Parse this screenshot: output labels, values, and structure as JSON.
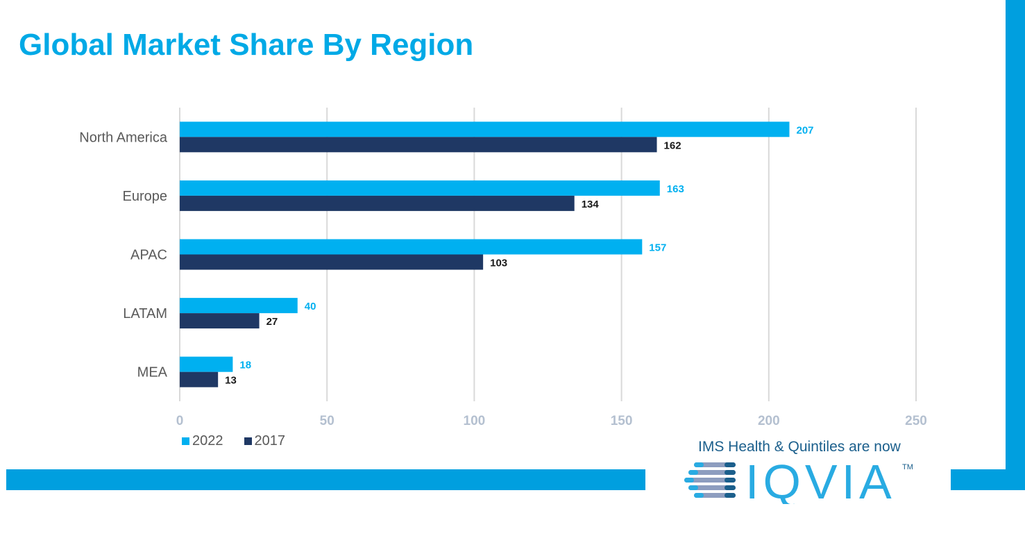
{
  "chart_data": {
    "type": "bar",
    "orientation": "horizontal",
    "title": "Global Market Share By Region",
    "categories": [
      "North America",
      "Europe",
      "APAC",
      "LATAM",
      "MEA"
    ],
    "series": [
      {
        "name": "2022",
        "values": [
          207,
          163,
          157,
          40,
          18
        ],
        "color": "#00b0f0"
      },
      {
        "name": "2017",
        "values": [
          162,
          134,
          103,
          27,
          13
        ],
        "color": "#1f3864"
      }
    ],
    "xlim": [
      0,
      250
    ],
    "xticks": [
      0,
      50,
      100,
      150,
      200,
      250
    ],
    "grid": true,
    "legend": "bottom-left",
    "data_labels": true
  },
  "branding": {
    "tagline": "IMS Health & Quintiles are now",
    "logo_text": "IQVIA",
    "trademark": "TM",
    "accent": "#009fdf"
  }
}
